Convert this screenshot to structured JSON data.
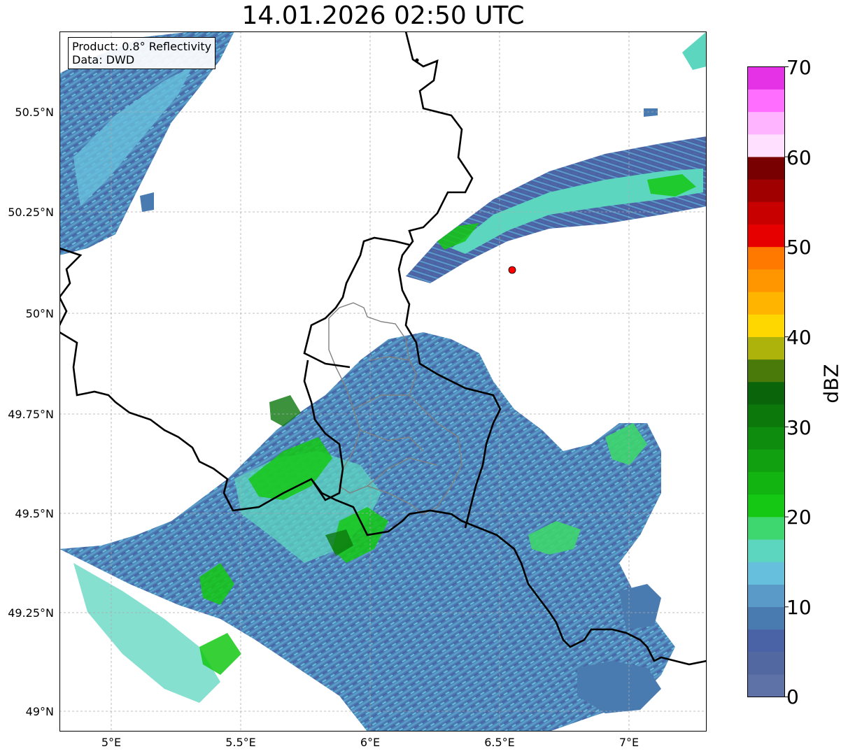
{
  "title": "14.01.2026 02:50 UTC",
  "info": {
    "product_line": "Product: 0.8° Reflectivity",
    "data_line": "Data: DWD"
  },
  "axes": {
    "lat_labels": [
      "50.5°N",
      "50.25°N",
      "50°N",
      "49.75°N",
      "49.5°N",
      "49.25°N",
      "49°N"
    ],
    "lon_labels": [
      "5°E",
      "5.5°E",
      "6°E",
      "6.5°E",
      "7°E"
    ]
  },
  "colorbar": {
    "unit": "dBZ",
    "tick_labels": [
      "0",
      "10",
      "20",
      "30",
      "40",
      "50",
      "60",
      "70"
    ],
    "colors": [
      "#5f72a8",
      "#5268a1",
      "#4a62a6",
      "#4a7bb0",
      "#5a9ac8",
      "#66bfdc",
      "#5dd6c0",
      "#3ed66e",
      "#14c814",
      "#12b412",
      "#10a010",
      "#0e8c0e",
      "#0c780c",
      "#0a640a",
      "#4a7a0a",
      "#adb30a",
      "#ffd700",
      "#ffb400",
      "#ff9600",
      "#ff7800",
      "#e60000",
      "#c80000",
      "#a00000",
      "#780000",
      "#ffe1ff",
      "#ffb4ff",
      "#ff6eff",
      "#e632e6"
    ]
  },
  "map_colors": {
    "border_national": "#000000",
    "border_regional": "#808080",
    "radar_site": "#ff0000"
  }
}
